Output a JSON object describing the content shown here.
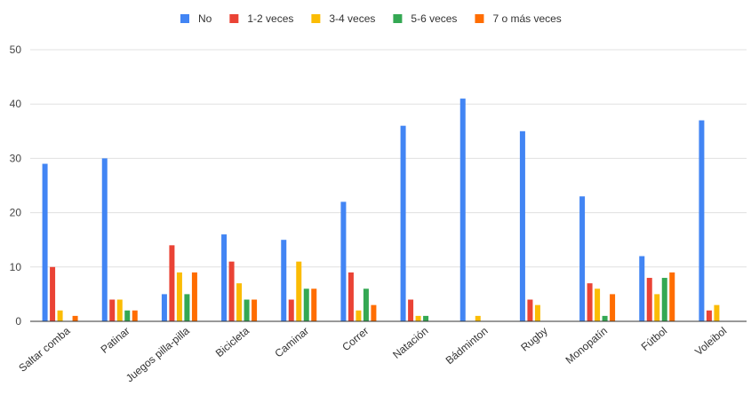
{
  "chart_data": {
    "type": "bar",
    "categories": [
      "Saltar comba",
      "Patinar",
      "Juegos pilla-pilla",
      "Bicicleta",
      "Caminar",
      "Correr",
      "Natación",
      "Bádminton",
      "Rugby",
      "Monopatín",
      "Fútbol",
      "Voleibol"
    ],
    "series": [
      {
        "name": "No",
        "color": "#4285f4",
        "values": [
          29,
          30,
          5,
          16,
          15,
          22,
          36,
          41,
          35,
          23,
          12,
          37
        ]
      },
      {
        "name": "1-2 veces",
        "color": "#ea4335",
        "values": [
          10,
          4,
          14,
          11,
          4,
          9,
          4,
          0,
          4,
          7,
          8,
          2
        ]
      },
      {
        "name": "3-4 veces",
        "color": "#fbbc04",
        "values": [
          2,
          4,
          9,
          7,
          11,
          2,
          1,
          1,
          3,
          6,
          5,
          3
        ]
      },
      {
        "name": "5-6 veces",
        "color": "#34a853",
        "values": [
          0,
          2,
          5,
          4,
          6,
          6,
          1,
          0,
          0,
          1,
          8,
          0
        ]
      },
      {
        "name": "7 o más veces",
        "color": "#ff6d01",
        "values": [
          1,
          2,
          9,
          4,
          6,
          3,
          0,
          0,
          0,
          5,
          9,
          0
        ]
      }
    ],
    "yticks": [
      0,
      10,
      20,
      30,
      40,
      50
    ],
    "ylim": [
      0,
      50
    ],
    "grid": true,
    "legend_position": "top",
    "title": "",
    "xlabel": "",
    "ylabel": ""
  }
}
